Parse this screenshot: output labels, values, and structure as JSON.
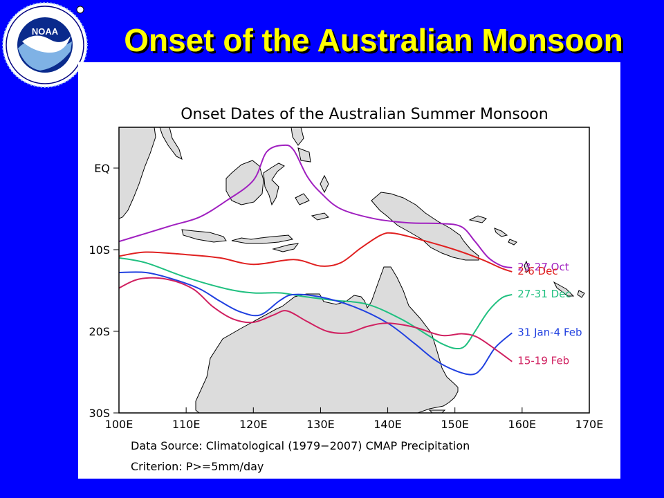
{
  "slide": {
    "title": "Onset of the Australian Monsoon",
    "background": "#0000ff",
    "title_color": "#ffff00"
  },
  "logo": {
    "name": "noaa-logo",
    "center_text": "NOAA",
    "ring_text": "NATIONAL OCEANIC AND ATMOSPHERIC ADMINISTRATION · U.S. DEPARTMENT OF COMMERCE"
  },
  "map": {
    "title": "Onset Dates of the Australian Summer Monsoon",
    "x_ticks": [
      "100E",
      "110E",
      "120E",
      "130E",
      "140E",
      "150E",
      "160E",
      "170E"
    ],
    "y_ticks": [
      "EQ",
      "10S",
      "20S",
      "30S"
    ],
    "lon_range": [
      100,
      170
    ],
    "lat_range": [
      -30,
      5
    ],
    "land_color": "#dcdcdc",
    "footnote_source": "Data Source: Climatological (1979−2007) CMAP Precipitation",
    "footnote_criterion": "Criterion: P>=5mm/day"
  },
  "chart_data": {
    "type": "line",
    "x_unit": "degrees longitude (E)",
    "y_unit": "degrees latitude (negative = S)",
    "series": [
      {
        "name": "23-27 Oct",
        "color": "#a020c0",
        "points": [
          [
            100,
            -9.0
          ],
          [
            104,
            -8.0
          ],
          [
            108,
            -7.0
          ],
          [
            112,
            -6.0
          ],
          [
            116,
            -4.0
          ],
          [
            120,
            -1.5
          ],
          [
            122,
            2.0
          ],
          [
            124.5,
            2.8
          ],
          [
            126,
            2.2
          ],
          [
            128,
            -1.0
          ],
          [
            130,
            -3.0
          ],
          [
            133,
            -5.0
          ],
          [
            138,
            -6.2
          ],
          [
            143,
            -6.7
          ],
          [
            148,
            -6.8
          ],
          [
            151,
            -7.2
          ],
          [
            153,
            -9.0
          ],
          [
            155,
            -11.0
          ],
          [
            157,
            -12.0
          ],
          [
            158.5,
            -12.2
          ]
        ]
      },
      {
        "name": "2-6 Dec",
        "color": "#e02020",
        "points": [
          [
            100,
            -10.8
          ],
          [
            104,
            -10.3
          ],
          [
            110,
            -10.6
          ],
          [
            115,
            -11.0
          ],
          [
            120,
            -11.8
          ],
          [
            126,
            -11.2
          ],
          [
            130,
            -12.0
          ],
          [
            133,
            -11.6
          ],
          [
            136,
            -9.8
          ],
          [
            139,
            -8.2
          ],
          [
            141,
            -8.0
          ],
          [
            145,
            -8.8
          ],
          [
            150,
            -10.0
          ],
          [
            154,
            -11.2
          ],
          [
            157,
            -12.3
          ],
          [
            158.5,
            -12.7
          ]
        ]
      },
      {
        "name": "27-31 Dec",
        "color": "#20c080",
        "points": [
          [
            100,
            -11.0
          ],
          [
            104,
            -11.6
          ],
          [
            110,
            -13.4
          ],
          [
            116,
            -14.8
          ],
          [
            120,
            -15.3
          ],
          [
            124,
            -15.3
          ],
          [
            128,
            -15.8
          ],
          [
            132,
            -16.2
          ],
          [
            137,
            -16.7
          ],
          [
            142,
            -18.5
          ],
          [
            146,
            -20.5
          ],
          [
            148,
            -21.5
          ],
          [
            150,
            -22.1
          ],
          [
            151.5,
            -21.8
          ],
          [
            153,
            -20.0
          ],
          [
            155,
            -17.5
          ],
          [
            157,
            -15.9
          ],
          [
            158.5,
            -15.5
          ]
        ]
      },
      {
        "name": "31 Jan-4 Feb",
        "color": "#2040e0",
        "points": [
          [
            100,
            -12.8
          ],
          [
            104,
            -12.8
          ],
          [
            108,
            -13.6
          ],
          [
            112,
            -14.8
          ],
          [
            115,
            -16.3
          ],
          [
            118,
            -17.6
          ],
          [
            121,
            -18.0
          ],
          [
            124,
            -16.2
          ],
          [
            126,
            -15.5
          ],
          [
            130,
            -15.8
          ],
          [
            135,
            -17.0
          ],
          [
            140,
            -19.0
          ],
          [
            144,
            -21.5
          ],
          [
            147,
            -23.5
          ],
          [
            150,
            -24.8
          ],
          [
            152.5,
            -25.3
          ],
          [
            154,
            -24.5
          ],
          [
            156,
            -22.0
          ],
          [
            158.5,
            -20.2
          ]
        ]
      },
      {
        "name": "15-19 Feb",
        "color": "#d02060",
        "points": [
          [
            100,
            -14.7
          ],
          [
            103,
            -13.6
          ],
          [
            107,
            -13.6
          ],
          [
            111,
            -14.8
          ],
          [
            114,
            -17.0
          ],
          [
            117,
            -18.5
          ],
          [
            120,
            -18.9
          ],
          [
            123,
            -18.0
          ],
          [
            125,
            -17.5
          ],
          [
            128,
            -18.8
          ],
          [
            131,
            -20.0
          ],
          [
            134,
            -20.2
          ],
          [
            137,
            -19.4
          ],
          [
            140,
            -19.0
          ],
          [
            144,
            -19.5
          ],
          [
            148,
            -20.5
          ],
          [
            151,
            -20.3
          ],
          [
            153,
            -20.6
          ],
          [
            155,
            -21.6
          ],
          [
            158.5,
            -23.7
          ]
        ]
      }
    ]
  }
}
